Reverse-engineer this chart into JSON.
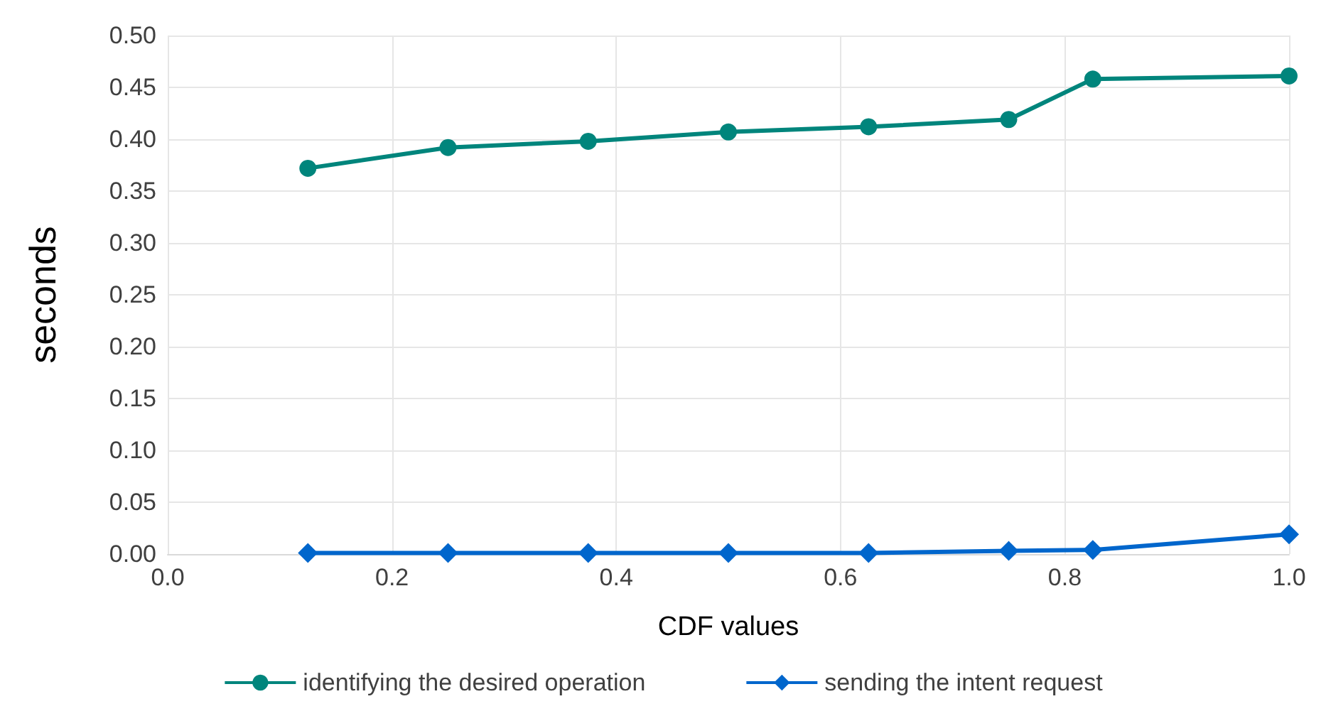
{
  "chart_data": {
    "type": "line",
    "xlabel": "CDF values",
    "ylabel": "seconds",
    "x": [
      0.125,
      0.25,
      0.375,
      0.5,
      0.625,
      0.75,
      0.825,
      1.0
    ],
    "series": [
      {
        "name": "identifying the desired operation",
        "color": "#00857c",
        "marker": "circle",
        "values": [
          0.372,
          0.392,
          0.398,
          0.407,
          0.412,
          0.419,
          0.458,
          0.461
        ]
      },
      {
        "name": "sending the intent request",
        "color": "#0066cc",
        "marker": "diamond",
        "values": [
          0.001,
          0.001,
          0.001,
          0.001,
          0.001,
          0.003,
          0.004,
          0.019
        ]
      }
    ],
    "xlim": [
      0,
      1
    ],
    "xticks": [
      {
        "value": 0,
        "label": "0.0"
      },
      0.2,
      0.4,
      0.6,
      0.8,
      {
        "value": 1,
        "label": "1.0"
      }
    ],
    "ylim": [
      0,
      0.5
    ],
    "yticks": [
      {
        "value": 0,
        "label": "0.00"
      },
      0.05,
      {
        "value": 0.1,
        "label": "0.10"
      },
      0.15,
      {
        "value": 0.2,
        "label": "0.20"
      },
      0.25,
      {
        "value": 0.3,
        "label": "0.30"
      },
      0.35,
      {
        "value": 0.4,
        "label": "0.40"
      },
      0.45,
      {
        "value": 0.5,
        "label": "0.50"
      }
    ],
    "grid": true,
    "legend": "bottom",
    "line_style": "solid"
  }
}
